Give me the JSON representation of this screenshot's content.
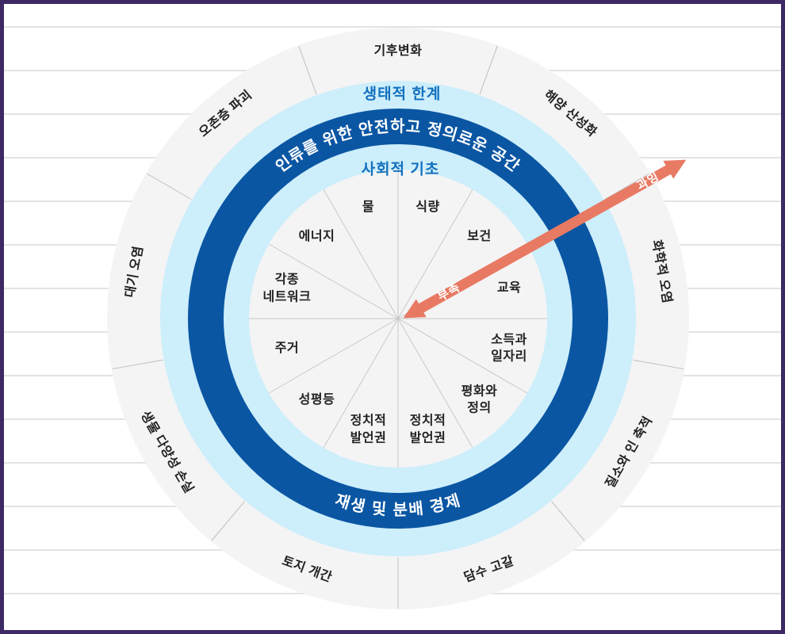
{
  "diagram": {
    "ecological_ceiling_label": "생태적 한계",
    "safe_space_label": "인류를 위한 안전하고 정의로운 공간",
    "social_foundation_label": "사회적 기초",
    "economy_label": "재생 및 분배 경제",
    "arrow_labels": {
      "shortfall": "부족",
      "overshoot": "과잉"
    },
    "outer_segments": [
      {
        "label": "기후변화",
        "angle": 0
      },
      {
        "label": "해양 산성화",
        "angle": 40
      },
      {
        "label": "화학적 오염",
        "angle": 80
      },
      {
        "label": "질소와 인 축적",
        "angle": 120
      },
      {
        "label": "담수 고갈",
        "angle": 160
      },
      {
        "label": "토지 개간",
        "angle": 200
      },
      {
        "label": "생물 다양성 손실",
        "angle": 240
      },
      {
        "label": "대기 오염",
        "angle": 280
      },
      {
        "label": "오존층 파괴",
        "angle": 320
      }
    ],
    "inner_segments": [
      {
        "label": "물",
        "angle": 345
      },
      {
        "label": "식량",
        "angle": 15
      },
      {
        "label": "보건",
        "angle": 45
      },
      {
        "label": "교육",
        "angle": 75
      },
      {
        "label": "소득과\n일자리",
        "angle": 105
      },
      {
        "label": "평화와\n정의",
        "angle": 135
      },
      {
        "label": "정치적\n발언권",
        "angle": 165
      },
      {
        "label": "정치적\n발언권",
        "angle": 195
      },
      {
        "label": "성평등",
        "angle": 225
      },
      {
        "label": "주거",
        "angle": 255
      },
      {
        "label": "각종\n네트워크",
        "angle": 285
      },
      {
        "label": "에너지",
        "angle": 315
      }
    ],
    "colors": {
      "ring_dark_blue": "#0a56a3",
      "ring_light_blue": "#cdeefb",
      "ring_gray": "#f4f4f5",
      "arrow_coral": "#e87a63",
      "band_title_blue": "#1371be",
      "frame_border_purple": "#3d2a64",
      "rule_line_gray": "#e3e3e3"
    }
  }
}
